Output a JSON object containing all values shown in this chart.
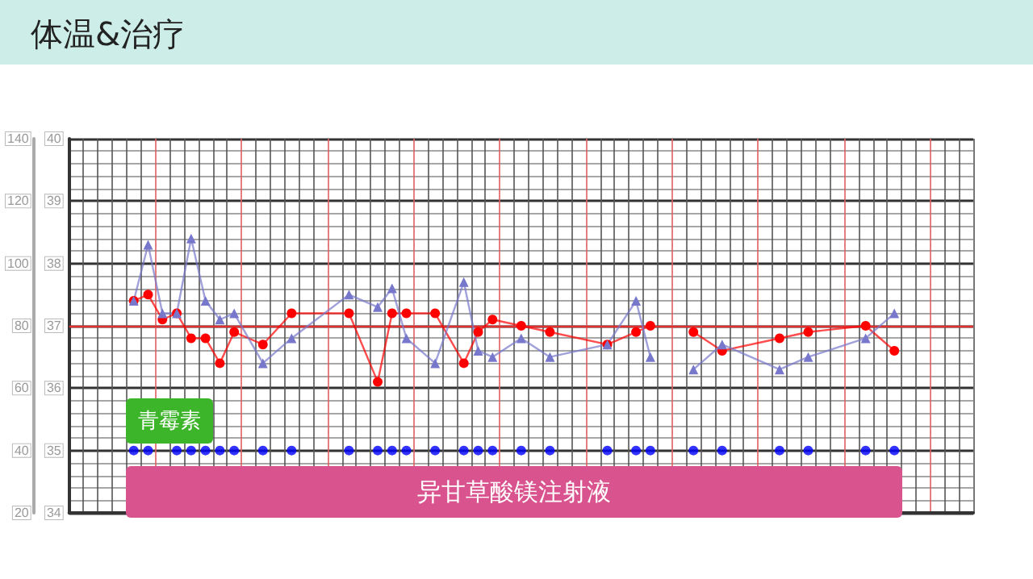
{
  "chart_data": {
    "type": "line",
    "title": "体温&治疗",
    "categories": [
      null,
      null,
      null,
      null,
      null,
      null,
      null,
      null,
      null,
      null,
      null,
      null,
      null,
      null,
      null,
      null,
      null,
      null,
      null,
      null,
      null,
      null,
      null,
      null,
      null,
      null,
      null,
      null,
      null,
      null,
      null,
      null,
      null,
      null,
      null,
      null,
      null,
      null,
      null,
      null,
      null,
      null,
      null,
      null,
      null,
      null,
      null,
      null,
      null,
      null,
      null,
      null,
      null,
      null,
      null,
      null,
      null,
      null,
      null,
      null,
      null,
      null,
      null
    ],
    "series": [
      {
        "marker": "circle",
        "color": "#ff0000",
        "values": [
          null,
          null,
          null,
          null,
          37.4,
          37.5,
          37.1,
          37.2,
          36.8,
          36.8,
          36.4,
          36.9,
          null,
          36.7,
          null,
          37.2,
          null,
          null,
          null,
          37.2,
          null,
          36.1,
          37.2,
          37.2,
          null,
          37.2,
          null,
          36.4,
          36.9,
          37.1,
          null,
          37.0,
          null,
          36.9,
          null,
          null,
          null,
          36.7,
          null,
          36.9,
          37.0,
          null,
          null,
          null,
          null,
          null,
          null,
          null,
          null,
          null,
          null,
          null,
          null,
          null,
          null,
          null,
          null,
          null,
          null,
          null,
          null,
          null,
          null
        ]
      },
      {
        "marker": "circle",
        "color": "#ff0000",
        "values": [
          null,
          null,
          null,
          null,
          null,
          null,
          null,
          null,
          null,
          null,
          null,
          null,
          null,
          null,
          null,
          null,
          null,
          null,
          null,
          null,
          null,
          null,
          null,
          null,
          null,
          null,
          null,
          null,
          null,
          null,
          null,
          null,
          null,
          null,
          null,
          null,
          null,
          null,
          null,
          null,
          null,
          null,
          null,
          36.9,
          null,
          36.6,
          null,
          null,
          null,
          36.8,
          null,
          36.9,
          null,
          null,
          null,
          37.0,
          null,
          36.6,
          null,
          null,
          null,
          null,
          null
        ]
      },
      {
        "marker": "triangle",
        "color": "#7777cc",
        "values": [
          null,
          null,
          null,
          null,
          37.4,
          38.3,
          37.2,
          37.2,
          38.4,
          37.4,
          37.1,
          37.2,
          null,
          36.4,
          null,
          36.8,
          null,
          null,
          null,
          37.5,
          null,
          37.3,
          37.6,
          36.8,
          null,
          36.4,
          null,
          37.7,
          36.6,
          36.5,
          null,
          36.8,
          null,
          36.5,
          null,
          null,
          null,
          36.7,
          null,
          37.4,
          36.5,
          null,
          null,
          null,
          null,
          null,
          null,
          null,
          null,
          null,
          null,
          null,
          null,
          null,
          null,
          null,
          null,
          null,
          null,
          null,
          null,
          null,
          null
        ]
      },
      {
        "marker": "triangle",
        "color": "#7777cc",
        "values": [
          null,
          null,
          null,
          null,
          null,
          null,
          null,
          null,
          null,
          null,
          null,
          null,
          null,
          null,
          null,
          null,
          null,
          null,
          null,
          null,
          null,
          null,
          null,
          null,
          null,
          null,
          null,
          null,
          null,
          null,
          null,
          null,
          null,
          null,
          null,
          null,
          null,
          null,
          null,
          null,
          null,
          null,
          null,
          36.3,
          null,
          36.7,
          null,
          null,
          null,
          36.3,
          null,
          36.5,
          null,
          null,
          null,
          36.8,
          null,
          37.2,
          null,
          null,
          null,
          null,
          null
        ]
      },
      {
        "type": "scatter",
        "marker": "circle",
        "color": "#0000ff",
        "values": [
          null,
          null,
          null,
          null,
          35,
          35,
          null,
          35,
          35,
          35,
          35,
          35,
          null,
          35,
          null,
          35,
          null,
          null,
          null,
          35,
          null,
          35,
          35,
          35,
          null,
          35,
          null,
          35,
          35,
          35,
          null,
          35,
          null,
          35,
          null,
          null,
          null,
          35,
          null,
          35,
          35,
          null,
          null,
          35,
          null,
          35,
          null,
          null,
          null,
          35,
          null,
          35,
          null,
          null,
          null,
          35,
          null,
          35,
          null,
          null,
          null,
          null,
          null
        ]
      }
    ],
    "ylim": [
      34,
      40
    ],
    "yticks": [
      34,
      35,
      36,
      37,
      38,
      39,
      40
    ],
    "y2lim": [
      20,
      140
    ],
    "y2ticks": [
      20,
      40,
      60,
      80,
      100,
      120,
      140
    ],
    "ref_lines": [
      {
        "axis": "y",
        "value": 37,
        "color": "#e03030"
      }
    ],
    "annotations": [
      "青霉素",
      "异甘草酸镁注射液"
    ],
    "grid": true
  }
}
